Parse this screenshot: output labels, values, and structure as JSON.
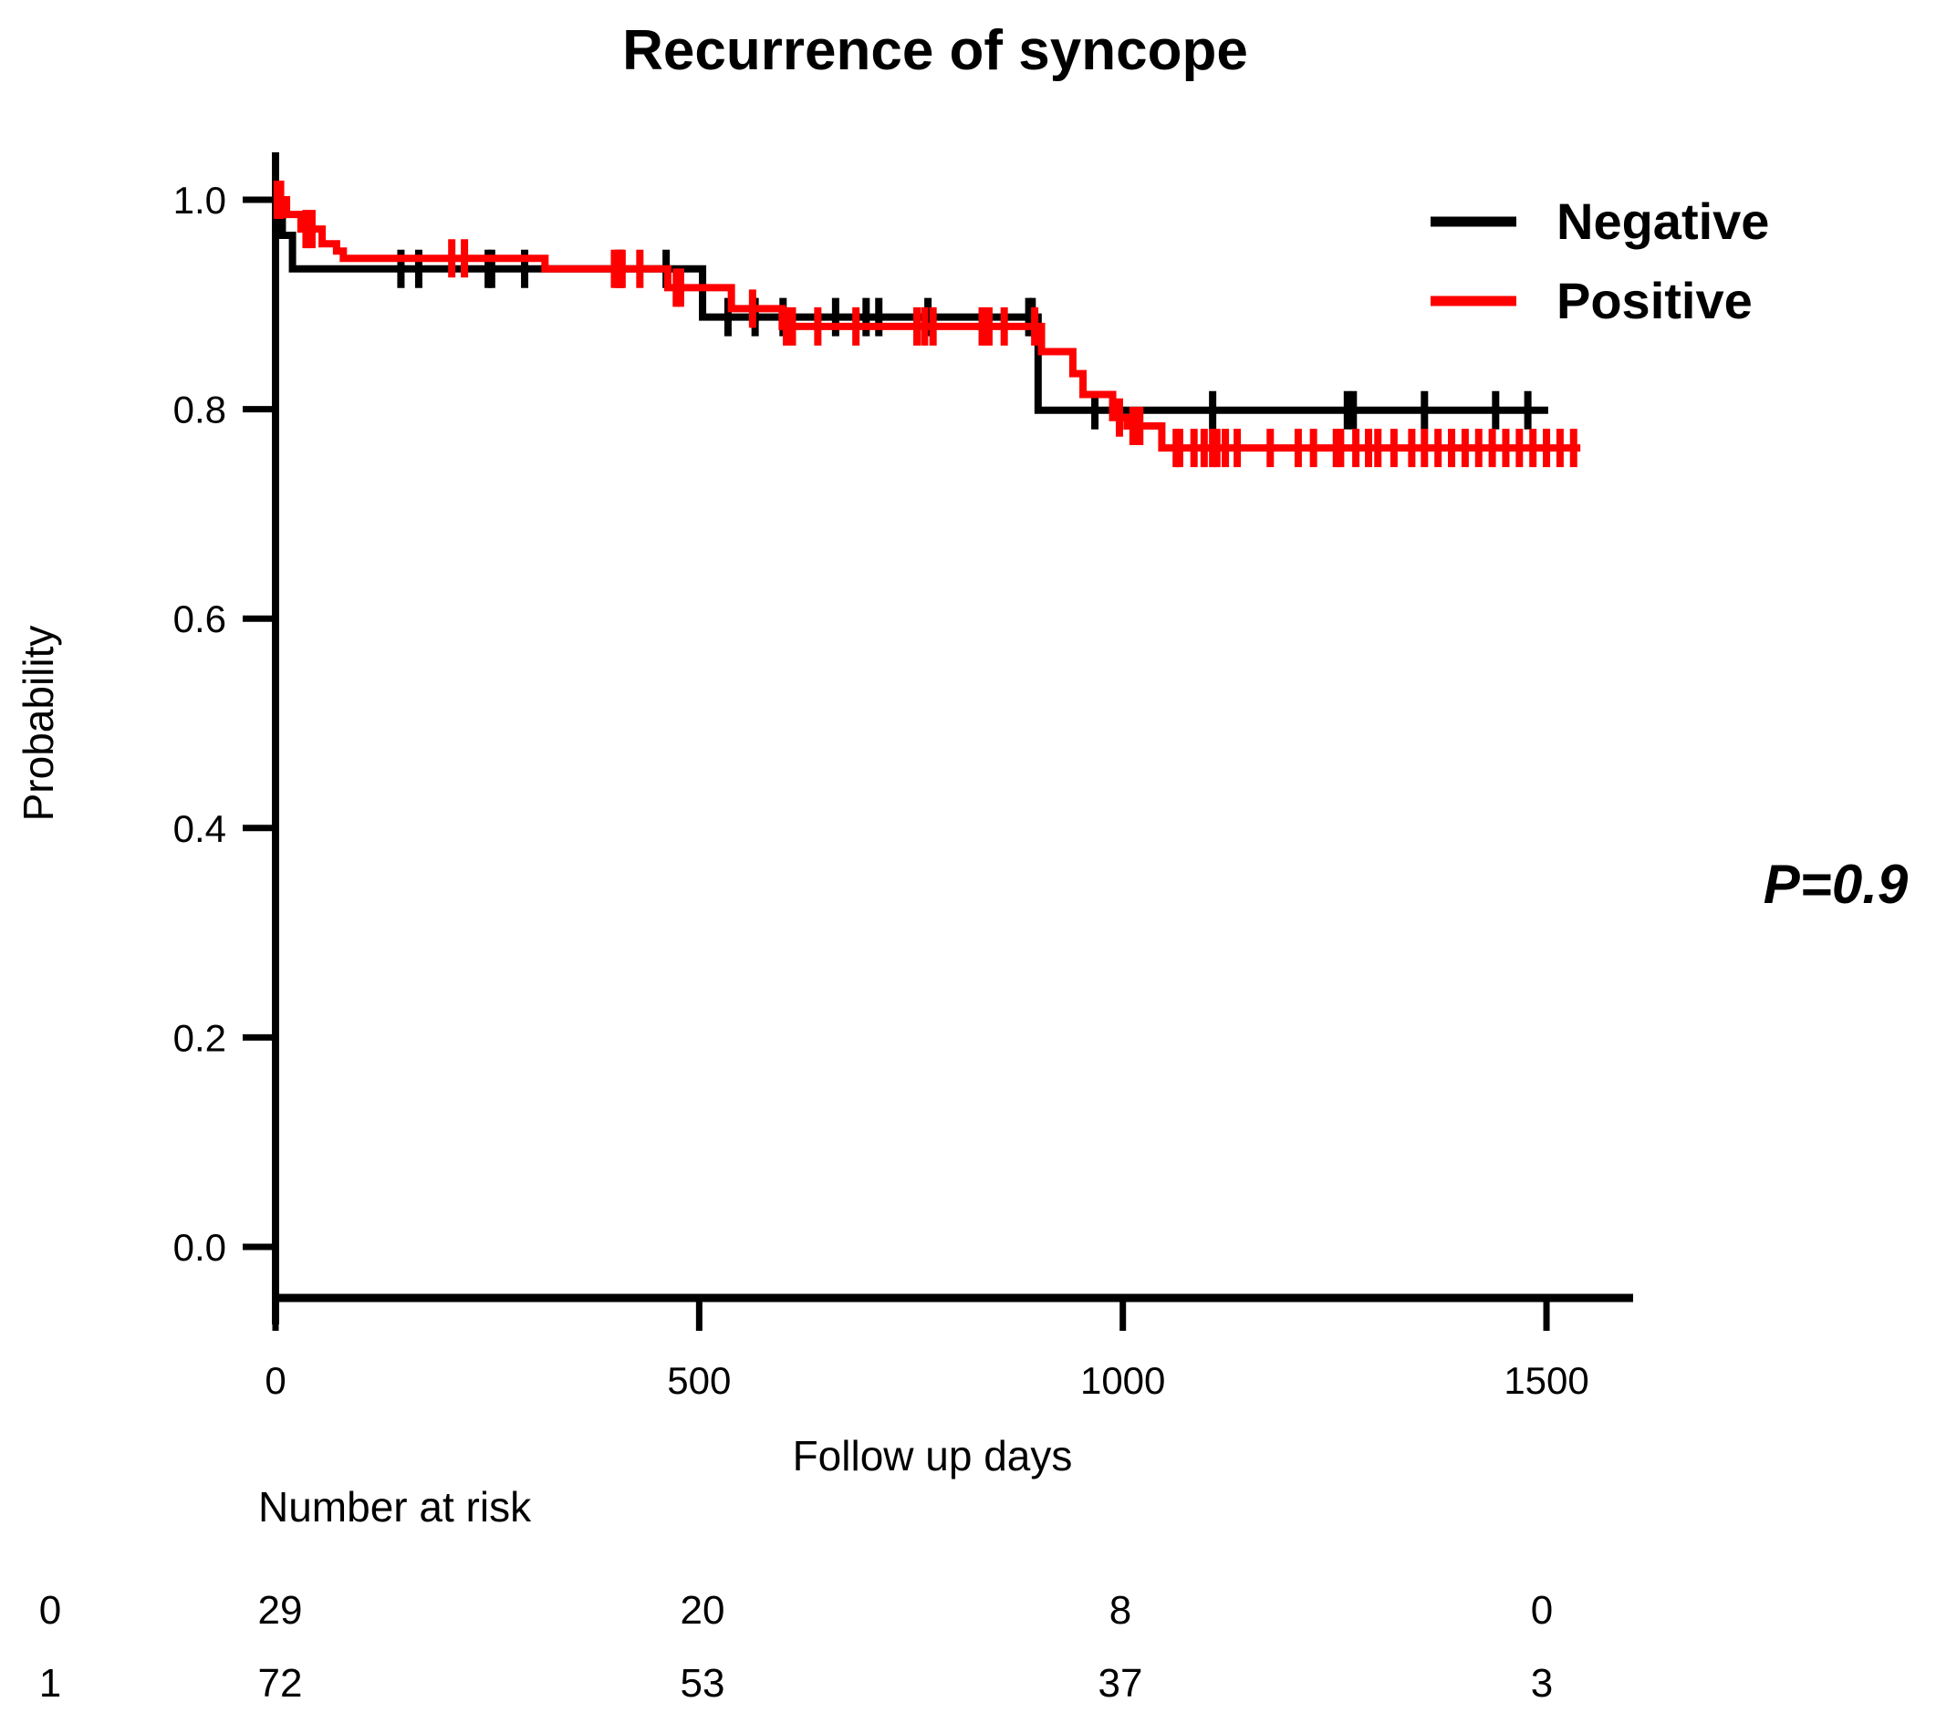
{
  "title": "Recurrence of syncope",
  "p_value_label": "P=0.9",
  "risk_table": {
    "heading": "Number at risk",
    "columns": [
      "0",
      "500",
      "1000",
      "1500"
    ],
    "rows": [
      {
        "label": "0",
        "values": [
          "29",
          "20",
          "8",
          "0"
        ]
      },
      {
        "label": "1",
        "values": [
          "72",
          "53",
          "37",
          "3"
        ]
      }
    ]
  },
  "chart_data": {
    "type": "line",
    "subtype": "kaplan-meier-step",
    "title": "Recurrence of syncope",
    "xlabel": "Follow up days",
    "ylabel": "Probability",
    "xlim": [
      0,
      1600
    ],
    "ylim": [
      0.0,
      1.0
    ],
    "grid": false,
    "legend_position": "top-right",
    "p_value": "P=0.9",
    "x_ticks": [
      {
        "value": 0,
        "label": "0"
      },
      {
        "value": 500,
        "label": "500"
      },
      {
        "value": 1000,
        "label": "1000"
      },
      {
        "value": 1500,
        "label": "1500"
      }
    ],
    "y_ticks": [
      {
        "value": 1.0,
        "label": "1.0"
      },
      {
        "value": 0.8,
        "label": "0.8"
      },
      {
        "value": 0.6,
        "label": "0.6"
      },
      {
        "value": 0.4,
        "label": "0.4"
      },
      {
        "value": 0.2,
        "label": "0.2"
      },
      {
        "value": 0.0,
        "label": "0.0"
      }
    ],
    "series": [
      {
        "name": "Negative",
        "color": "#000000",
        "steps": [
          [
            0,
            1.0
          ],
          [
            8,
            0.966
          ],
          [
            20,
            0.934
          ],
          [
            504,
            0.888
          ],
          [
            900,
            0.799
          ],
          [
            1502,
            0.799
          ]
        ],
        "censors": [
          [
            148,
            0.934
          ],
          [
            169,
            0.934
          ],
          [
            251,
            0.934
          ],
          [
            255,
            0.934
          ],
          [
            294,
            0.934
          ],
          [
            407,
            0.934
          ],
          [
            461,
            0.934
          ],
          [
            534,
            0.888
          ],
          [
            566,
            0.888
          ],
          [
            599,
            0.888
          ],
          [
            661,
            0.888
          ],
          [
            697,
            0.888
          ],
          [
            712,
            0.888
          ],
          [
            770,
            0.888
          ],
          [
            889,
            0.888
          ],
          [
            893,
            0.888
          ],
          [
            967,
            0.799
          ],
          [
            1106,
            0.799
          ],
          [
            1265,
            0.799
          ],
          [
            1272,
            0.799
          ],
          [
            1356,
            0.799
          ],
          [
            1440,
            0.799
          ],
          [
            1478,
            0.799
          ]
        ]
      },
      {
        "name": "Positive",
        "color": "#ff0000",
        "steps": [
          [
            0,
            1.0
          ],
          [
            13,
            0.986
          ],
          [
            30,
            0.972
          ],
          [
            55,
            0.958
          ],
          [
            72,
            0.951
          ],
          [
            80,
            0.944
          ],
          [
            318,
            0.934
          ],
          [
            463,
            0.916
          ],
          [
            538,
            0.896
          ],
          [
            598,
            0.879
          ],
          [
            904,
            0.855
          ],
          [
            941,
            0.834
          ],
          [
            953,
            0.814
          ],
          [
            988,
            0.792
          ],
          [
            1005,
            0.784
          ],
          [
            1046,
            0.763
          ],
          [
            1540,
            0.763
          ]
        ],
        "censors": [
          [
            2,
            1.0
          ],
          [
            6,
            1.0
          ],
          [
            36,
            0.972
          ],
          [
            43,
            0.972
          ],
          [
            208,
            0.944
          ],
          [
            223,
            0.944
          ],
          [
            400,
            0.934
          ],
          [
            404,
            0.934
          ],
          [
            409,
            0.934
          ],
          [
            430,
            0.934
          ],
          [
            473,
            0.916
          ],
          [
            478,
            0.916
          ],
          [
            563,
            0.896
          ],
          [
            603,
            0.879
          ],
          [
            610,
            0.879
          ],
          [
            640,
            0.879
          ],
          [
            685,
            0.879
          ],
          [
            757,
            0.879
          ],
          [
            766,
            0.879
          ],
          [
            776,
            0.879
          ],
          [
            834,
            0.879
          ],
          [
            842,
            0.879
          ],
          [
            860,
            0.879
          ],
          [
            896,
            0.879
          ],
          [
            996,
            0.792
          ],
          [
            1012,
            0.784
          ],
          [
            1020,
            0.784
          ],
          [
            1063,
            0.763
          ],
          [
            1067,
            0.763
          ],
          [
            1084,
            0.763
          ],
          [
            1096,
            0.763
          ],
          [
            1106,
            0.763
          ],
          [
            1111,
            0.763
          ],
          [
            1121,
            0.763
          ],
          [
            1135,
            0.763
          ],
          [
            1174,
            0.763
          ],
          [
            1207,
            0.763
          ],
          [
            1225,
            0.763
          ],
          [
            1252,
            0.763
          ],
          [
            1257,
            0.763
          ],
          [
            1275,
            0.763
          ],
          [
            1290,
            0.763
          ],
          [
            1301,
            0.763
          ],
          [
            1320,
            0.763
          ],
          [
            1341,
            0.763
          ],
          [
            1356,
            0.763
          ],
          [
            1372,
            0.763
          ],
          [
            1388,
            0.763
          ],
          [
            1404,
            0.763
          ],
          [
            1420,
            0.763
          ],
          [
            1436,
            0.763
          ],
          [
            1452,
            0.763
          ],
          [
            1468,
            0.763
          ],
          [
            1484,
            0.763
          ],
          [
            1500,
            0.763
          ],
          [
            1516,
            0.763
          ],
          [
            1532,
            0.763
          ]
        ]
      }
    ]
  }
}
